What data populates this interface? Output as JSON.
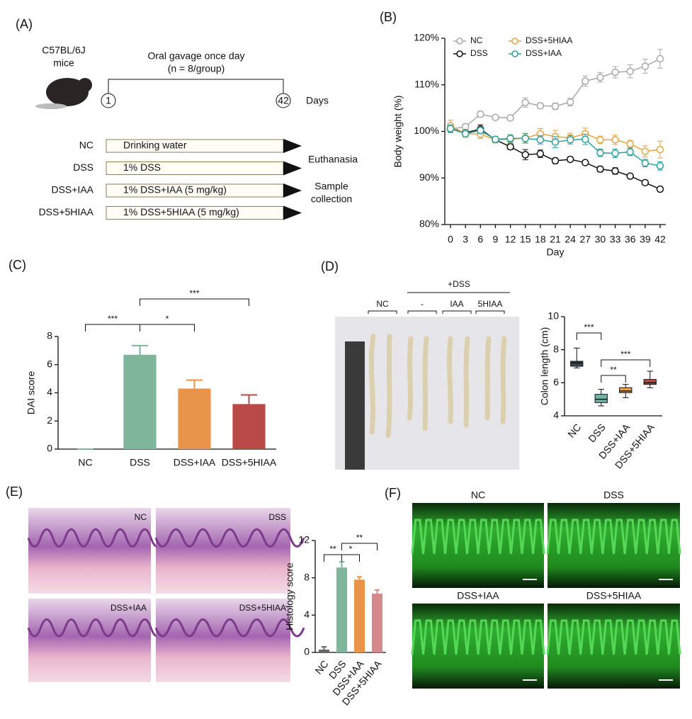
{
  "panel_labels": [
    "(A)",
    "(B)",
    "(C)",
    "(D)",
    "(E)",
    "(F)"
  ],
  "schematic": {
    "strain": [
      "C57BL/6J",
      "mice"
    ],
    "protocol": [
      "Oral gavage once day",
      "(n = 8/group)"
    ],
    "day_start": "1",
    "day_end": "42",
    "day_unit": "Days",
    "groups": [
      {
        "name": "NC",
        "treatment": "Drinking water"
      },
      {
        "name": "DSS",
        "treatment": "1% DSS"
      },
      {
        "name": "DSS+IAA",
        "treatment": "1% DSS+IAA (5 mg/kg)"
      },
      {
        "name": "DSS+5HIAA",
        "treatment": "1% DSS+5HIAA (5 mg/kg)"
      }
    ],
    "endpoints": [
      "Euthanasia",
      "Sample",
      "collection"
    ]
  },
  "colon_photo": {
    "treatment": "+DSS",
    "groups": [
      "NC",
      "-",
      "IAA",
      "5HIAA"
    ]
  },
  "histology_images": [
    "NC",
    "DSS",
    "DSS+IAA",
    "DSS+5HIAA"
  ],
  "fluorescence_images": [
    "NC",
    "DSS",
    "DSS+IAA",
    "DSS+5HIAA"
  ],
  "chart_data": [
    {
      "type": "line",
      "xlabel": "Day",
      "ylabel": "Body weight (%)",
      "x": [
        0,
        3,
        6,
        9,
        12,
        15,
        18,
        21,
        24,
        27,
        30,
        33,
        36,
        39,
        42
      ],
      "xlim": [
        0,
        42
      ],
      "xticks": [
        0,
        3,
        6,
        9,
        12,
        15,
        18,
        21,
        24,
        27,
        30,
        33,
        36,
        39,
        42
      ],
      "ylim": [
        80,
        120
      ],
      "yticks": [
        {
          "value": 80,
          "label": "80%"
        },
        {
          "value": 90,
          "label": "90%"
        },
        {
          "value": 100,
          "label": "100%"
        },
        {
          "value": 110,
          "label": "110%"
        },
        {
          "value": 120,
          "label": "120%"
        }
      ],
      "series": [
        {
          "name": "NC",
          "color": "#a8a8a8",
          "values": [
            100.5,
            101,
            103.7,
            103,
            102.9,
            106.2,
            105.5,
            105.4,
            106.3,
            110.8,
            111.6,
            112.7,
            112.9,
            114,
            115.6
          ],
          "errors": [
            0.8,
            0.6,
            0.6,
            0.4,
            0.5,
            1.0,
            0.6,
            0.7,
            0.8,
            1.1,
            1.0,
            1.2,
            1.4,
            1.5,
            2.0
          ]
        },
        {
          "name": "DSS",
          "color": "#111111",
          "values": [
            100.6,
            99.7,
            100.5,
            98.2,
            96.7,
            95,
            95.2,
            93.7,
            94,
            93.3,
            91.9,
            91.5,
            90.4,
            89,
            87.6
          ],
          "errors": [
            0.6,
            0.6,
            0.9,
            0.5,
            0.6,
            1.1,
            0.8,
            0.6,
            0.5,
            0.4,
            0.6,
            0.7,
            0.4,
            0.4,
            0.4
          ]
        },
        {
          "name": "DSS+5HIAA",
          "color": "#e6a444",
          "values": [
            101.2,
            99.5,
            99.4,
            98.2,
            98.3,
            98.6,
            99.5,
            98.9,
            98.6,
            99.5,
            98.2,
            98.2,
            97.3,
            95.7,
            96.1
          ],
          "errors": [
            1.2,
            0.8,
            0.9,
            0.7,
            0.8,
            1.0,
            1.1,
            1.3,
            1.0,
            1.2,
            0.8,
            1.0,
            0.8,
            1.2,
            1.8
          ]
        },
        {
          "name": "DSS+IAA",
          "color": "#2e9ea0",
          "values": [
            100.6,
            99.5,
            100.2,
            98.3,
            98.5,
            98.5,
            98.2,
            97.7,
            98.2,
            98.3,
            95.4,
            95.3,
            95.6,
            93.2,
            92.6
          ],
          "errors": [
            0.8,
            0.6,
            0.7,
            0.6,
            0.8,
            1.0,
            0.9,
            1.2,
            0.9,
            1.1,
            0.8,
            0.9,
            0.8,
            0.8,
            0.9
          ]
        }
      ]
    },
    {
      "type": "bar",
      "ylabel": "DAI score",
      "categories": [
        "NC",
        "DSS",
        "DSS+IAA",
        "DSS+5HIAA"
      ],
      "values": [
        0,
        6.7,
        4.3,
        3.2
      ],
      "errors": [
        0,
        0.65,
        0.6,
        0.65
      ],
      "colors": [
        "#7fb59a",
        "#7fb59a",
        "#e8944a",
        "#b94a47"
      ],
      "ylim": [
        0,
        8
      ],
      "yticks": [
        0,
        2,
        4,
        6,
        8
      ],
      "significance": [
        {
          "groups": [
            0,
            1
          ],
          "label": "***"
        },
        {
          "groups": [
            1,
            2
          ],
          "label": "*"
        },
        {
          "groups": [
            1,
            3
          ],
          "label": "***"
        }
      ]
    },
    {
      "type": "box",
      "ylabel": "Colon length (cm)",
      "categories": [
        "NC",
        "DSS",
        "DSS+IAA",
        "DSS+5HIAA"
      ],
      "boxes": [
        {
          "min": 6.9,
          "q1": 7.0,
          "median": 7.2,
          "q3": 7.3,
          "max": 8.1
        },
        {
          "min": 4.6,
          "q1": 4.8,
          "median": 5.0,
          "q3": 5.3,
          "max": 5.6
        },
        {
          "min": 5.1,
          "q1": 5.4,
          "median": 5.5,
          "q3": 5.7,
          "max": 5.9
        },
        {
          "min": 5.7,
          "q1": 5.9,
          "median": 6.0,
          "q3": 6.2,
          "max": 6.7
        }
      ],
      "colors": [
        "#3a4a52",
        "#6fb5a8",
        "#e8a44a",
        "#b94a47"
      ],
      "ylim": [
        4,
        10
      ],
      "yticks": [
        4,
        6,
        8,
        10
      ],
      "significance": [
        {
          "groups": [
            0,
            1
          ],
          "label": "***"
        },
        {
          "groups": [
            1,
            2
          ],
          "label": "**"
        },
        {
          "groups": [
            1,
            3
          ],
          "label": "***"
        }
      ]
    },
    {
      "type": "bar",
      "ylabel": "Histology score",
      "categories": [
        "NC",
        "DSS",
        "DSS+IAA",
        "DSS+5HIAA"
      ],
      "values": [
        0.3,
        9.1,
        7.8,
        6.3
      ],
      "errors": [
        0.3,
        0.6,
        0.3,
        0.4
      ],
      "colors": [
        "#666666",
        "#7fb59a",
        "#e8944a",
        "#d48a8a"
      ],
      "ylim": [
        0,
        12
      ],
      "yticks": [
        0,
        4,
        8,
        12
      ],
      "significance": [
        {
          "groups": [
            0,
            1
          ],
          "label": "**"
        },
        {
          "groups": [
            1,
            2
          ],
          "label": "*"
        },
        {
          "groups": [
            1,
            3
          ],
          "label": "**"
        }
      ]
    }
  ]
}
